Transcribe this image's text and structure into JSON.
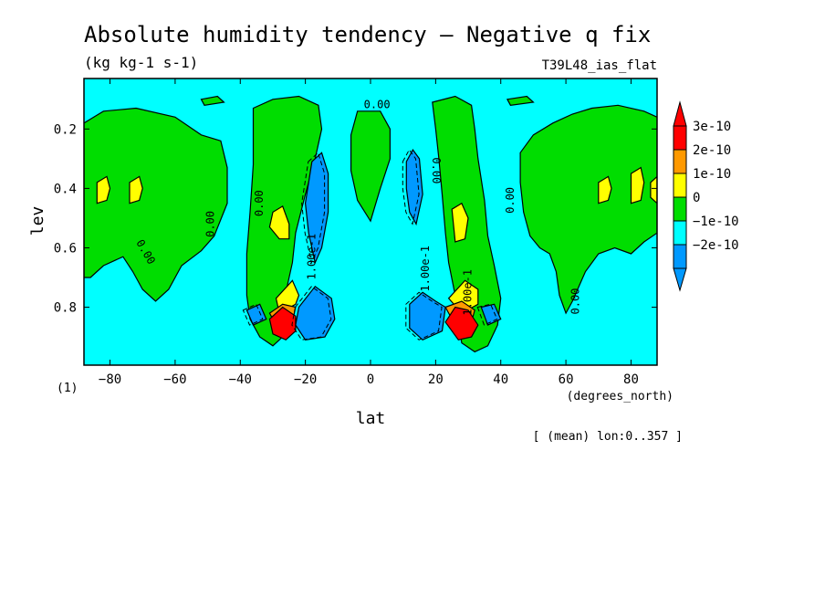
{
  "chart_data": {
    "type": "contour",
    "title": "Absolute humidity tendency — Negative q fix",
    "units": "(kg kg-1 s-1)",
    "run": "T39L48_ias_flat",
    "xlabel": "lat",
    "ylabel": "lev",
    "xunits": "(degrees_north)",
    "yunits": "(1)",
    "footer": "[ (mean) lon:0..357 ]",
    "xlim": [
      -88,
      88
    ],
    "ylim": [
      0.995,
      0.03
    ],
    "xticks": [
      -80,
      -60,
      -40,
      -20,
      0,
      20,
      40,
      60,
      80
    ],
    "xtick_labels": [
      "−80",
      "−60",
      "−40",
      "−20",
      "0",
      "20",
      "40",
      "60",
      "80"
    ],
    "yticks": [
      0.2,
      0.4,
      0.6,
      0.8
    ],
    "ytick_labels": [
      "0.2",
      "0.4",
      "0.6",
      "0.8"
    ],
    "background_color": "#00ffff",
    "color_levels": [
      {
        "label": "3e-10",
        "color": "#ff0000"
      },
      {
        "label": "2e-10",
        "color": "#ff9900"
      },
      {
        "label": "1e-10",
        "color": "#ffff00"
      },
      {
        "label": "0",
        "color": "#00dd00"
      },
      {
        "label": "−1e-10",
        "color": "#00ffff"
      },
      {
        "label": "−2e-10",
        "color": "#0099ff"
      }
    ],
    "contour_labels": [
      {
        "text": "0.00",
        "lat": 2,
        "lev": 0.13,
        "rot": 0
      },
      {
        "text": "0.00",
        "lat": -33,
        "lev": 0.45,
        "rot": -90
      },
      {
        "text": "0.00",
        "lat": -48,
        "lev": 0.52,
        "rot": -90
      },
      {
        "text": "0.00",
        "lat": -70,
        "lev": 0.62,
        "rot": 60
      },
      {
        "text": "0.00",
        "lat": 19,
        "lev": 0.34,
        "rot": 90
      },
      {
        "text": "0.00",
        "lat": 44,
        "lev": 0.44,
        "rot": -90
      },
      {
        "text": "0.00",
        "lat": 64,
        "lev": 0.78,
        "rot": -90
      },
      {
        "text": "1.00e-1",
        "lat": -17,
        "lev": 0.63,
        "rot": -90
      },
      {
        "text": "1.00e-1",
        "lat": 18,
        "lev": 0.67,
        "rot": -90
      },
      {
        "text": "1.00e-1",
        "lat": 31,
        "lev": 0.75,
        "rot": -90
      }
    ],
    "regions": [
      {
        "level": "0",
        "polys": [
          [
            [
              -88,
              0.18
            ],
            [
              -82,
              0.14
            ],
            [
              -72,
              0.13
            ],
            [
              -60,
              0.16
            ],
            [
              -52,
              0.22
            ],
            [
              -46,
              0.24
            ],
            [
              -44,
              0.33
            ],
            [
              -44,
              0.45
            ],
            [
              -48,
              0.56
            ],
            [
              -52,
              0.61
            ],
            [
              -58,
              0.66
            ],
            [
              -62,
              0.74
            ],
            [
              -66,
              0.78
            ],
            [
              -70,
              0.74
            ],
            [
              -73,
              0.68
            ],
            [
              -76,
              0.63
            ],
            [
              -82,
              0.66
            ],
            [
              -86,
              0.7
            ],
            [
              -88,
              0.7
            ]
          ],
          [
            [
              -36,
              0.13
            ],
            [
              -30,
              0.1
            ],
            [
              -22,
              0.09
            ],
            [
              -16,
              0.12
            ],
            [
              -15,
              0.2
            ],
            [
              -17,
              0.3
            ],
            [
              -20,
              0.42
            ],
            [
              -23,
              0.55
            ],
            [
              -24,
              0.65
            ],
            [
              -26,
              0.75
            ],
            [
              -27,
              0.82
            ],
            [
              -26,
              0.89
            ],
            [
              -30,
              0.93
            ],
            [
              -34,
              0.9
            ],
            [
              -37,
              0.84
            ],
            [
              -38,
              0.76
            ],
            [
              -38,
              0.62
            ],
            [
              -37,
              0.48
            ],
            [
              -36,
              0.32
            ]
          ],
          [
            [
              -4,
              0.14
            ],
            [
              3,
              0.14
            ],
            [
              6,
              0.2
            ],
            [
              6,
              0.3
            ],
            [
              3,
              0.4
            ],
            [
              0,
              0.51
            ],
            [
              -4,
              0.44
            ],
            [
              -6,
              0.34
            ],
            [
              -6,
              0.22
            ]
          ],
          [
            [
              19,
              0.11
            ],
            [
              26,
              0.09
            ],
            [
              31,
              0.12
            ],
            [
              32,
              0.2
            ],
            [
              33,
              0.3
            ],
            [
              35,
              0.44
            ],
            [
              36,
              0.56
            ],
            [
              38,
              0.66
            ],
            [
              40,
              0.77
            ],
            [
              39,
              0.86
            ],
            [
              36,
              0.93
            ],
            [
              32,
              0.95
            ],
            [
              28,
              0.92
            ],
            [
              27,
              0.84
            ],
            [
              26,
              0.76
            ],
            [
              24,
              0.65
            ],
            [
              23,
              0.55
            ],
            [
              22,
              0.42
            ],
            [
              21,
              0.3
            ],
            [
              20,
              0.2
            ]
          ],
          [
            [
              46,
              0.28
            ],
            [
              50,
              0.22
            ],
            [
              56,
              0.18
            ],
            [
              62,
              0.15
            ],
            [
              68,
              0.13
            ],
            [
              76,
              0.12
            ],
            [
              84,
              0.14
            ],
            [
              88,
              0.16
            ],
            [
              88,
              0.55
            ],
            [
              84,
              0.58
            ],
            [
              80,
              0.62
            ],
            [
              75,
              0.6
            ],
            [
              70,
              0.62
            ],
            [
              66,
              0.68
            ],
            [
              62,
              0.78
            ],
            [
              60,
              0.82
            ],
            [
              58,
              0.76
            ],
            [
              57,
              0.68
            ],
            [
              55,
              0.62
            ],
            [
              52,
              0.6
            ],
            [
              49,
              0.56
            ],
            [
              47,
              0.48
            ],
            [
              46,
              0.38
            ]
          ],
          [
            [
              -52,
              0.1
            ],
            [
              -47,
              0.09
            ],
            [
              -45,
              0.11
            ],
            [
              -51,
              0.12
            ]
          ],
          [
            [
              42,
              0.1
            ],
            [
              48,
              0.09
            ],
            [
              50,
              0.11
            ],
            [
              43,
              0.12
            ]
          ]
        ]
      },
      {
        "level": "1e-10",
        "polys": [
          [
            [
              -84,
              0.38
            ],
            [
              -81,
              0.36
            ],
            [
              -80,
              0.4
            ],
            [
              -81,
              0.44
            ],
            [
              -84,
              0.45
            ]
          ],
          [
            [
              -74,
              0.38
            ],
            [
              -71,
              0.36
            ],
            [
              -70,
              0.4
            ],
            [
              -71,
              0.44
            ],
            [
              -74,
              0.45
            ]
          ],
          [
            [
              -30,
              0.48
            ],
            [
              -27,
              0.46
            ],
            [
              -25,
              0.52
            ],
            [
              -25,
              0.57
            ],
            [
              -28,
              0.57
            ],
            [
              -31,
              0.53
            ]
          ],
          [
            [
              -29,
              0.77
            ],
            [
              -24,
              0.71
            ],
            [
              -22,
              0.76
            ],
            [
              -23,
              0.79
            ],
            [
              -28,
              0.82
            ]
          ],
          [
            [
              25,
              0.47
            ],
            [
              28,
              0.45
            ],
            [
              30,
              0.5
            ],
            [
              29,
              0.57
            ],
            [
              26,
              0.58
            ]
          ],
          [
            [
              24,
              0.77
            ],
            [
              29,
              0.71
            ],
            [
              33,
              0.74
            ],
            [
              33,
              0.79
            ],
            [
              28,
              0.82
            ]
          ],
          [
            [
              70,
              0.38
            ],
            [
              73,
              0.36
            ],
            [
              74,
              0.4
            ],
            [
              73,
              0.44
            ],
            [
              70,
              0.45
            ]
          ],
          [
            [
              80,
              0.35
            ],
            [
              83,
              0.33
            ],
            [
              84,
              0.38
            ],
            [
              83,
              0.44
            ],
            [
              80,
              0.45
            ]
          ],
          [
            [
              88,
              0.36
            ],
            [
              86,
              0.38
            ],
            [
              86,
              0.43
            ],
            [
              88,
              0.45
            ]
          ]
        ]
      },
      {
        "level": "2e-10",
        "polys": [
          [
            [
              -31,
              0.82
            ],
            [
              -27,
              0.79
            ],
            [
              -23,
              0.8
            ],
            [
              -24,
              0.85
            ],
            [
              -29,
              0.86
            ]
          ],
          [
            [
              23,
              0.8
            ],
            [
              28,
              0.78
            ],
            [
              32,
              0.81
            ],
            [
              31,
              0.85
            ],
            [
              26,
              0.86
            ]
          ]
        ]
      },
      {
        "level": "3e-10",
        "polys": [
          [
            [
              -31,
              0.84
            ],
            [
              -27,
              0.8
            ],
            [
              -23,
              0.83
            ],
            [
              -23,
              0.88
            ],
            [
              -26,
              0.91
            ],
            [
              -30,
              0.89
            ]
          ],
          [
            [
              23,
              0.85
            ],
            [
              26,
              0.8
            ],
            [
              30,
              0.81
            ],
            [
              33,
              0.86
            ],
            [
              31,
              0.9
            ],
            [
              27,
              0.91
            ]
          ]
        ]
      },
      {
        "level": "−2e-10",
        "polys": [
          [
            [
              -18,
              0.31
            ],
            [
              -15,
              0.28
            ],
            [
              -13,
              0.35
            ],
            [
              -13,
              0.48
            ],
            [
              -15,
              0.6
            ],
            [
              -17,
              0.65
            ],
            [
              -19,
              0.55
            ],
            [
              -20,
              0.45
            ]
          ],
          [
            [
              -22,
              0.8
            ],
            [
              -17,
              0.73
            ],
            [
              -12,
              0.77
            ],
            [
              -11,
              0.84
            ],
            [
              -14,
              0.9
            ],
            [
              -20,
              0.91
            ],
            [
              -23,
              0.86
            ]
          ],
          [
            [
              -38,
              0.81
            ],
            [
              -34,
              0.79
            ],
            [
              -32,
              0.84
            ],
            [
              -36,
              0.86
            ]
          ],
          [
            [
              11,
              0.31
            ],
            [
              13,
              0.27
            ],
            [
              15,
              0.3
            ],
            [
              16,
              0.42
            ],
            [
              14,
              0.52
            ],
            [
              12,
              0.48
            ],
            [
              11,
              0.4
            ]
          ],
          [
            [
              12,
              0.79
            ],
            [
              16,
              0.75
            ],
            [
              20,
              0.78
            ],
            [
              23,
              0.8
            ],
            [
              22,
              0.88
            ],
            [
              16,
              0.91
            ],
            [
              12,
              0.87
            ]
          ],
          [
            [
              34,
              0.8
            ],
            [
              38,
              0.79
            ],
            [
              40,
              0.84
            ],
            [
              36,
              0.86
            ]
          ]
        ]
      }
    ]
  }
}
